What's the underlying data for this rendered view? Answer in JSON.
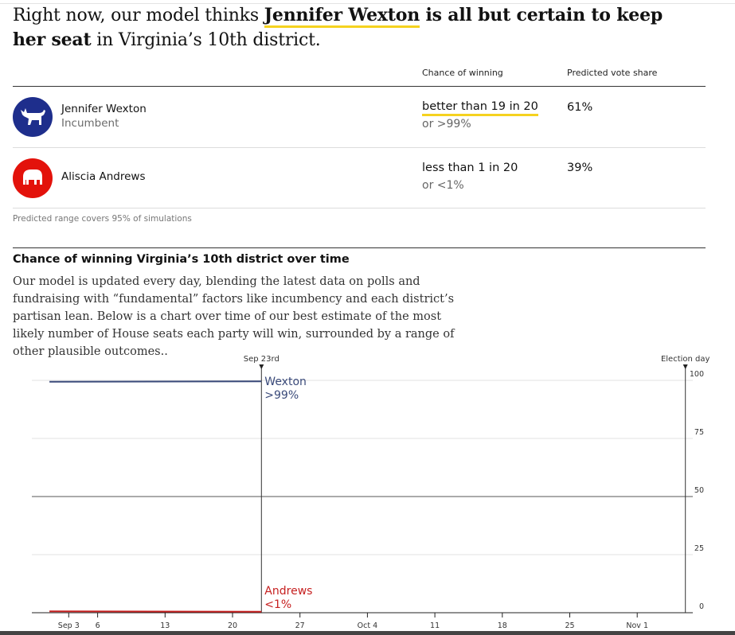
{
  "headline": {
    "part1": "Right now, our model thinks ",
    "name": "Jennifer Wexton",
    "part2": " is all but certain to keep her seat",
    "part3": " in Virginia’s 10th district."
  },
  "columns": {
    "chance": "Chance of winning",
    "share": "Predicted vote share"
  },
  "candidates": [
    {
      "name": "Jennifer Wexton",
      "subtitle": "Incumbent",
      "party_icon": "democratic-donkey-icon",
      "color": "#1e2e8c",
      "chance": "better than 19 in 20",
      "chance_alt": "or >99%",
      "vote_share": "61%"
    },
    {
      "name": "Aliscia Andrews",
      "subtitle": "",
      "party_icon": "republican-elephant-icon",
      "color": "#e3120b",
      "chance": "less than 1 in 20",
      "chance_alt": "or <1%",
      "vote_share": "39%"
    }
  ],
  "footnote": "Predicted range covers 95% of simulations",
  "section": {
    "title": "Chance of winning Virginia’s 10th district over time",
    "description": "Our model is updated every day, blending the latest data on polls and fundraising with “fundamental” factors like incumbency and each district’s partisan lean. Below is a chart over time of our best estimate of the most likely number of House seats each party will win, surrounded by a range of other plausible outcomes.."
  },
  "chart_data": {
    "type": "line",
    "x_ticks": [
      "Sep 3",
      "6",
      "13",
      "20",
      "27",
      "Oct 4",
      "11",
      "18",
      "25",
      "Nov 1"
    ],
    "y_ticks": [
      0,
      25,
      50,
      75,
      100
    ],
    "ylim": [
      0,
      100
    ],
    "grid": true,
    "markers": [
      {
        "label": "Sep 23rd",
        "x": "Sep 23"
      },
      {
        "label": "Election day",
        "x": "Nov 6"
      }
    ],
    "series": [
      {
        "name": "Wexton",
        "value_label": ">99%",
        "color": "#3a4a7a",
        "x": [
          "Sep 1",
          "Sep 23"
        ],
        "values": [
          99.4,
          99.6
        ]
      },
      {
        "name": "Andrews",
        "value_label": "<1%",
        "color": "#c62020",
        "x": [
          "Sep 1",
          "Sep 23"
        ],
        "values": [
          0.6,
          0.4
        ]
      }
    ]
  }
}
